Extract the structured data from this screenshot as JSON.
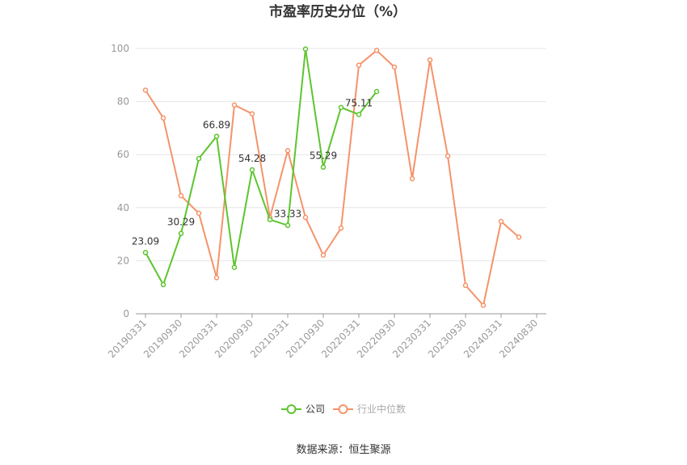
{
  "chart_data": {
    "type": "line",
    "title": "市盈率历史分位（%）",
    "x_ticks": [
      "20190331",
      "20190930",
      "20200331",
      "20200930",
      "20210331",
      "20210930",
      "20220331",
      "20220930",
      "20230331",
      "20230930",
      "20240331",
      "20240830"
    ],
    "ylim": [
      0,
      100
    ],
    "y_ticks": [
      0,
      20,
      40,
      60,
      80,
      100
    ],
    "grid": true,
    "legend_position": "bottom",
    "series": [
      {
        "name": "公司",
        "color": "#5cc52f",
        "values": [
          23.09,
          11.0,
          30.29,
          58.5,
          66.89,
          17.5,
          54.28,
          35.5,
          33.33,
          99.8,
          55.29,
          77.8,
          75.11,
          83.8
        ],
        "labeled_points": [
          0,
          2,
          4,
          6,
          8,
          10,
          12
        ]
      },
      {
        "name": "行业中位数",
        "color": "#f5936a",
        "values": [
          84.3,
          73.8,
          44.5,
          37.9,
          13.6,
          78.7,
          75.4,
          36.3,
          61.5,
          36.3,
          22.1,
          32.3,
          93.7,
          99.3,
          93.0,
          50.9,
          95.7,
          59.5,
          10.7,
          3.2,
          34.8,
          28.9
        ]
      }
    ]
  },
  "source": "数据来源：恒生聚源"
}
